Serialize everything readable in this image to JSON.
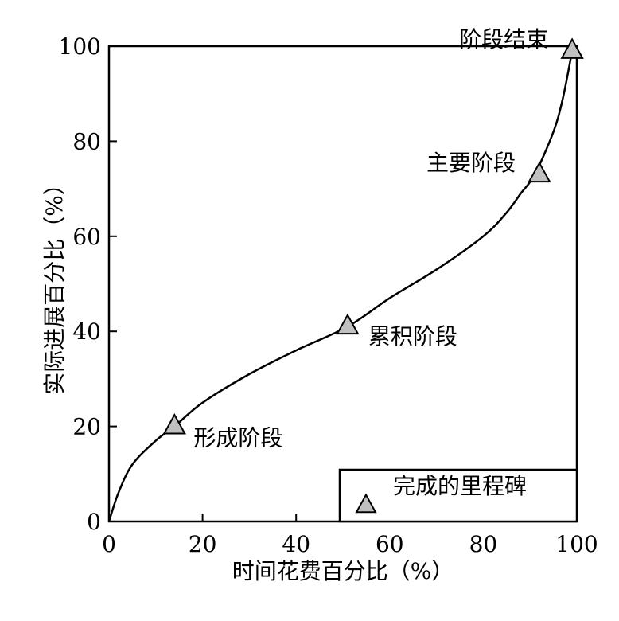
{
  "chart_data": {
    "type": "line",
    "title": "",
    "xlabel": "时间花费百分比（%）",
    "ylabel": "实际进展百分比（%）",
    "xlim": [
      0,
      100
    ],
    "ylim": [
      0,
      100
    ],
    "xticks": [
      "0",
      "20",
      "40",
      "60",
      "80",
      "100"
    ],
    "yticks": [
      "0",
      "20",
      "40",
      "60",
      "80",
      "100"
    ],
    "grid": false,
    "series": [
      {
        "x": [
          0,
          2,
          5,
          10,
          14,
          20,
          30,
          40,
          51,
          60,
          70,
          80,
          85,
          88,
          91,
          95,
          97,
          99
        ],
        "y": [
          0,
          6,
          12,
          17,
          20,
          25,
          31,
          36,
          41,
          47,
          53,
          60,
          65,
          69,
          73,
          82,
          89,
          99
        ]
      }
    ],
    "markers": [
      {
        "x": 14,
        "y": 20,
        "label": "形成阶段"
      },
      {
        "x": 51,
        "y": 41,
        "label": "累积阶段"
      },
      {
        "x": 92,
        "y": 73,
        "label": "主要阶段"
      },
      {
        "x": 99,
        "y": 99,
        "label": "阶段结束"
      }
    ],
    "legend": {
      "position": "bottom-right",
      "entries": [
        {
          "label": "完成的里程碑",
          "marker": "triangle"
        }
      ]
    },
    "colors": {
      "line": "#000000",
      "marker_fill": "#c0c0c0",
      "marker_stroke": "#000000"
    }
  }
}
